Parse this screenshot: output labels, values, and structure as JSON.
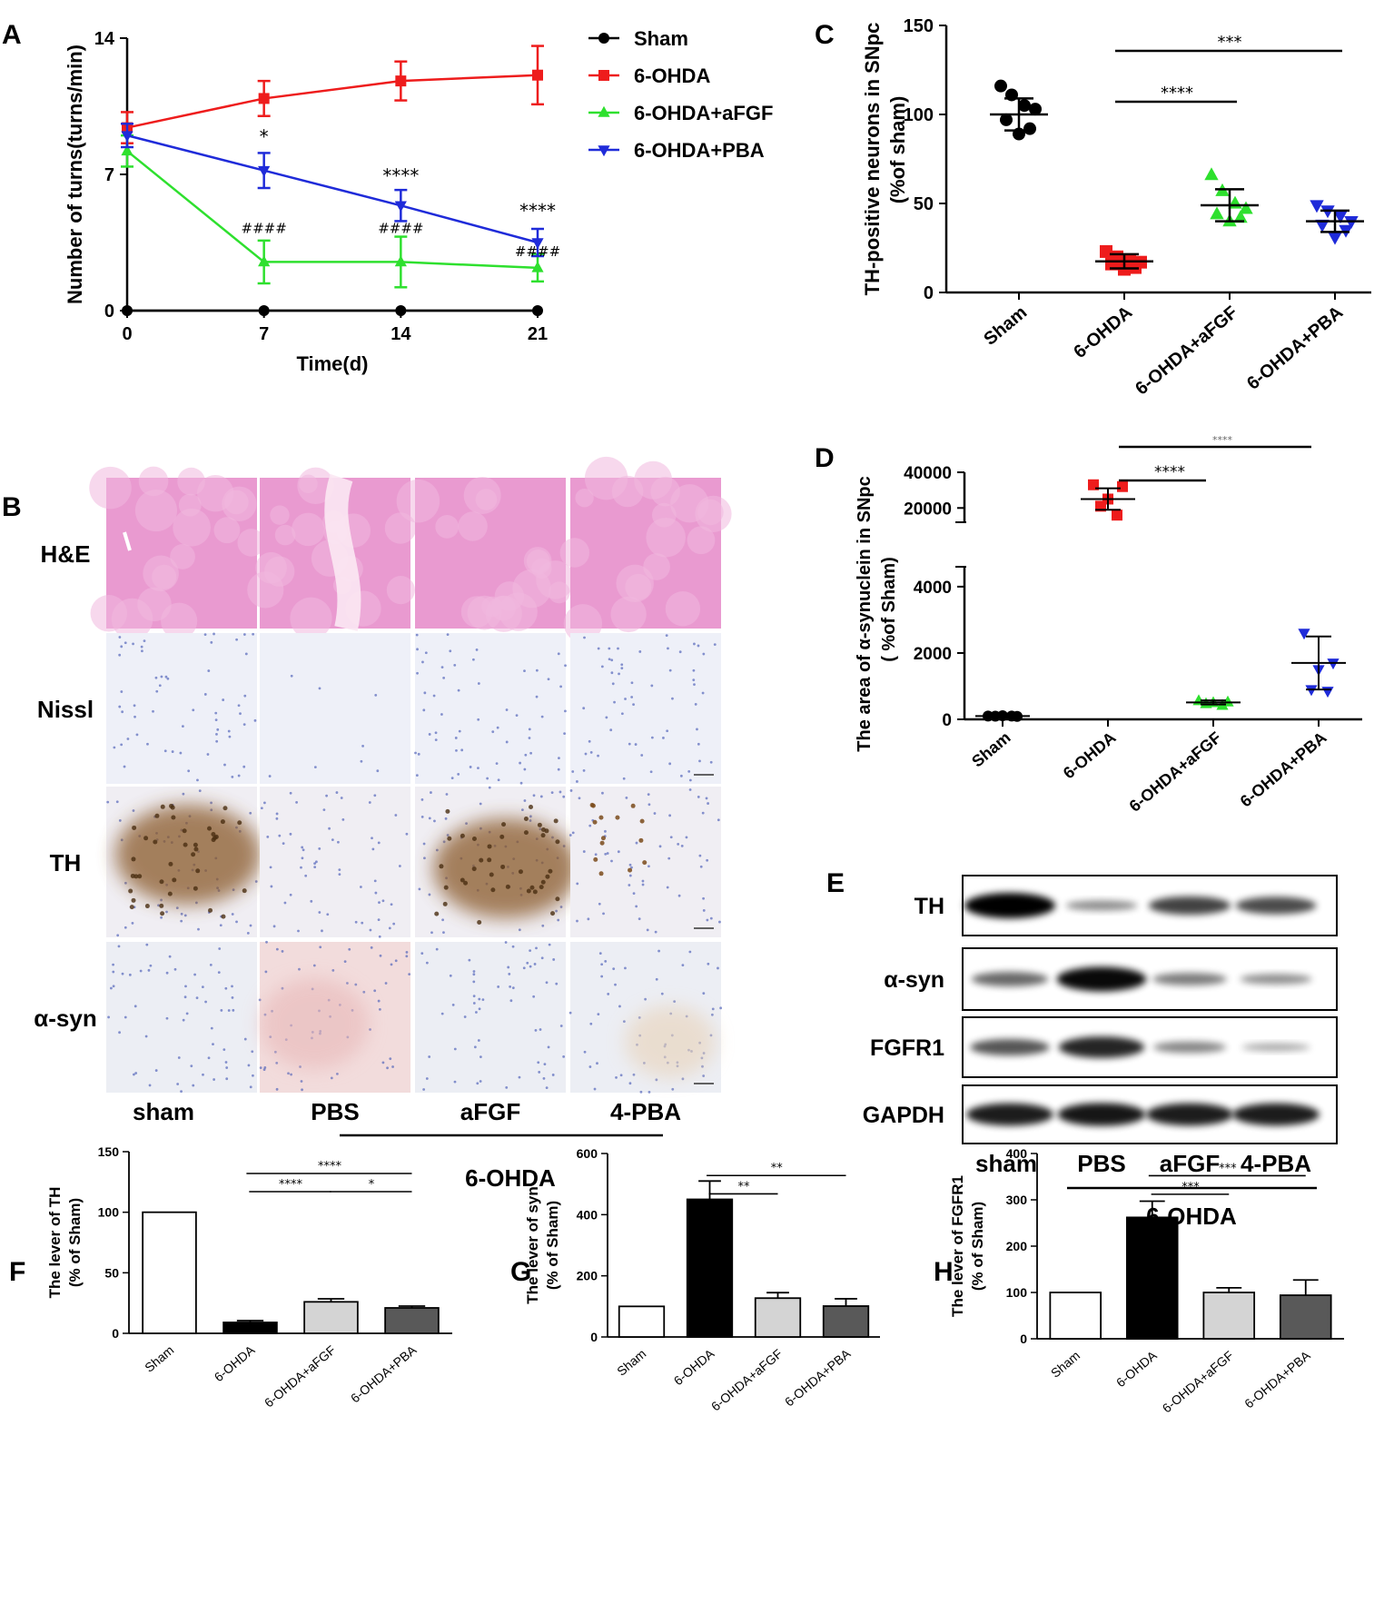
{
  "panels": {
    "a": "A",
    "b": "B",
    "c": "C",
    "d": "D",
    "e": "E",
    "f": "F",
    "g": "G",
    "h": "H"
  },
  "colors": {
    "sham": "#000000",
    "ohda": "#ee1c1c",
    "afgf": "#2ee02e",
    "pba": "#1f2bd9",
    "bar_sham": "#ffffff",
    "bar_ohda": "#000000",
    "bar_afgf": "#d4d4d4",
    "bar_pba": "#595959",
    "he_pink": "#e99ad0",
    "nissl_bg": "#eef0f8",
    "th_brown": "#8a5a2a"
  },
  "chart_data": [
    {
      "id": "A",
      "type": "line",
      "xlabel": "Time(d)",
      "ylabel": "Number of turns(turns/min)",
      "x": [
        0,
        7,
        14,
        21
      ],
      "xticks": [
        "0",
        "7",
        "14",
        "21"
      ],
      "yticks": [
        "0",
        "7",
        "14"
      ],
      "ylim": [
        0,
        14
      ],
      "legend_position": "right",
      "series": [
        {
          "name": "Sham",
          "values": [
            0,
            0,
            0,
            0
          ],
          "errors": [
            0,
            0,
            0,
            0
          ],
          "marker": "circle"
        },
        {
          "name": "6-OHDA",
          "values": [
            9.4,
            10.9,
            11.8,
            12.1
          ],
          "errors": [
            0.8,
            0.9,
            1.0,
            1.5
          ],
          "marker": "square"
        },
        {
          "name": "6-OHDA+aFGF",
          "values": [
            8.2,
            2.5,
            2.5,
            2.2
          ],
          "errors": [
            0.8,
            1.1,
            1.3,
            0.7
          ],
          "marker": "triangle-up"
        },
        {
          "name": "6-OHDA+PBA",
          "values": [
            9.0,
            7.2,
            5.4,
            3.5
          ],
          "errors": [
            0.6,
            0.9,
            0.8,
            0.7
          ],
          "marker": "triangle-down"
        }
      ],
      "annotations": [
        {
          "x": 7,
          "y": 8.6,
          "text": "*",
          "series": "6-OHDA+PBA"
        },
        {
          "x": 14,
          "y": 6.6,
          "text": "****",
          "series": "6-OHDA+PBA"
        },
        {
          "x": 21,
          "y": 4.8,
          "text": "****",
          "series": "6-OHDA+PBA"
        },
        {
          "x": 7,
          "y": 4.0,
          "text": "####",
          "series": "6-OHDA+aFGF"
        },
        {
          "x": 14,
          "y": 4.0,
          "text": "####",
          "series": "6-OHDA+aFGF"
        },
        {
          "x": 21,
          "y": 2.8,
          "text": "####",
          "series": "6-OHDA+aFGF"
        }
      ]
    },
    {
      "id": "C",
      "type": "scatter",
      "ylabel_line1": "TH-positive neurons in SNpc",
      "ylabel_line2": "(%of sham)",
      "categories": [
        "Sham",
        "6-OHDA",
        "6-OHDA+aFGF",
        "6-OHDA+PBA"
      ],
      "yticks": [
        "0",
        "50",
        "100",
        "150"
      ],
      "ylim": [
        0,
        150
      ],
      "series": [
        {
          "name": "Sham",
          "points": [
            116,
            111,
            105,
            103,
            97,
            92,
            89
          ],
          "mean": 100,
          "sd": 9
        },
        {
          "name": "6-OHDA",
          "points": [
            23,
            20,
            18,
            17,
            16,
            14,
            13
          ],
          "mean": 17.5,
          "sd": 4
        },
        {
          "name": "6-OHDA+aFGF",
          "points": [
            66,
            57,
            50,
            47,
            44,
            42,
            40
          ],
          "mean": 49,
          "sd": 9
        },
        {
          "name": "6-OHDA+PBA",
          "points": [
            49,
            46,
            43,
            40,
            38,
            35,
            31
          ],
          "mean": 40,
          "sd": 6
        }
      ],
      "brackets": [
        {
          "from": 1,
          "to": 2,
          "text": "****",
          "level": 0
        },
        {
          "from": 1,
          "to": 3,
          "text": "***",
          "level": 1
        }
      ]
    },
    {
      "id": "D",
      "type": "scatter",
      "ylabel_line1": "The area of α-synuclein in SNpc",
      "ylabel_line2": "( %of Sham)",
      "categories": [
        "Sham",
        "6-OHDA",
        "6-OHDA+aFGF",
        "6-OHDA+PBA"
      ],
      "yticks_lower": [
        "0",
        "2000",
        "4000"
      ],
      "yticks_upper": [
        "20000",
        "40000"
      ],
      "ylim_lower": [
        0,
        4600
      ],
      "ylim_upper": [
        12000,
        40000
      ],
      "series": [
        {
          "name": "Sham",
          "points": [
            100,
            90,
            110,
            95,
            100
          ],
          "mean": 100,
          "sd": 10
        },
        {
          "name": "6-OHDA",
          "points": [
            33000,
            32000,
            25000,
            21000,
            16000
          ],
          "mean": 25000,
          "sd": 6000
        },
        {
          "name": "6-OHDA+aFGF",
          "points": [
            560,
            520,
            500,
            470,
            420
          ],
          "mean": 510,
          "sd": 60
        },
        {
          "name": "6-OHDA+PBA",
          "points": [
            2600,
            1700,
            1500,
            900,
            850
          ],
          "mean": 1700,
          "sd": 800
        }
      ],
      "brackets": [
        {
          "from": 1,
          "to": 2,
          "text": "****",
          "level": 0
        },
        {
          "from": 1,
          "to": 3,
          "text": "****",
          "level": 1
        }
      ]
    },
    {
      "id": "F",
      "type": "bar",
      "ylabel_line1": "The lever of TH",
      "ylabel_line2": "(% of Sham)",
      "categories": [
        "Sham",
        "6-OHDA",
        "6-OHDA+aFGF",
        "6-OHDA+PBA"
      ],
      "values": [
        100,
        9,
        26,
        21
      ],
      "errors": [
        0,
        1.5,
        2.5,
        1.5
      ],
      "yticks": [
        "0",
        "50",
        "100",
        "150"
      ],
      "ylim": [
        0,
        150
      ],
      "brackets": [
        {
          "from": 1,
          "to": 2,
          "text": "****",
          "level": 0
        },
        {
          "from": 2,
          "to": 3,
          "text": "*",
          "level": 0
        },
        {
          "from": 1,
          "to": 3,
          "text": "****",
          "level": 1
        }
      ]
    },
    {
      "id": "G",
      "type": "bar",
      "ylabel_line1": "The lever of syn",
      "ylabel_line2": "(% of Sham)",
      "categories": [
        "Sham",
        "6-OHDA",
        "6-OHDA+aFGF",
        "6-OHDA+PBA"
      ],
      "values": [
        100,
        450,
        127,
        101
      ],
      "errors": [
        0,
        60,
        18,
        24
      ],
      "yticks": [
        "0",
        "200",
        "400",
        "600"
      ],
      "ylim": [
        0,
        600
      ],
      "brackets": [
        {
          "from": 1,
          "to": 2,
          "text": "**",
          "level": 0
        },
        {
          "from": 1,
          "to": 3,
          "text": "**",
          "level": 1
        }
      ]
    },
    {
      "id": "H",
      "type": "bar",
      "ylabel_line1": "The lever of FGFR1",
      "ylabel_line2": "(% of Sham)",
      "categories": [
        "Sham",
        "6-OHDA",
        "6-OHDA+aFGF",
        "6-OHDA+PBA"
      ],
      "values": [
        100,
        262,
        100,
        94
      ],
      "errors": [
        0,
        35,
        10,
        33
      ],
      "yticks": [
        "0",
        "100",
        "200",
        "300",
        "400"
      ],
      "ylim": [
        0,
        400
      ],
      "brackets": [
        {
          "from": 1,
          "to": 2,
          "text": "***",
          "level": 0
        },
        {
          "from": 1,
          "to": 3,
          "text": "***",
          "level": 1
        }
      ]
    }
  ],
  "histology": {
    "rows": [
      "H&E",
      "Nissl",
      "TH",
      "α-syn"
    ],
    "columns": [
      "sham",
      "PBS",
      "aFGF",
      "4-PBA"
    ],
    "group_label": "6-OHDA"
  },
  "blot": {
    "rows": [
      "TH",
      "α-syn",
      "FGFR1",
      "GAPDH"
    ],
    "columns": [
      "sham",
      "PBS",
      "aFGF",
      "4-PBA"
    ],
    "group_label": "6-OHDA",
    "intensity": [
      [
        1.0,
        0.25,
        0.65,
        0.6
      ],
      [
        0.45,
        0.95,
        0.35,
        0.25
      ],
      [
        0.55,
        0.8,
        0.3,
        0.12
      ],
      [
        0.85,
        0.88,
        0.85,
        0.85
      ]
    ]
  }
}
